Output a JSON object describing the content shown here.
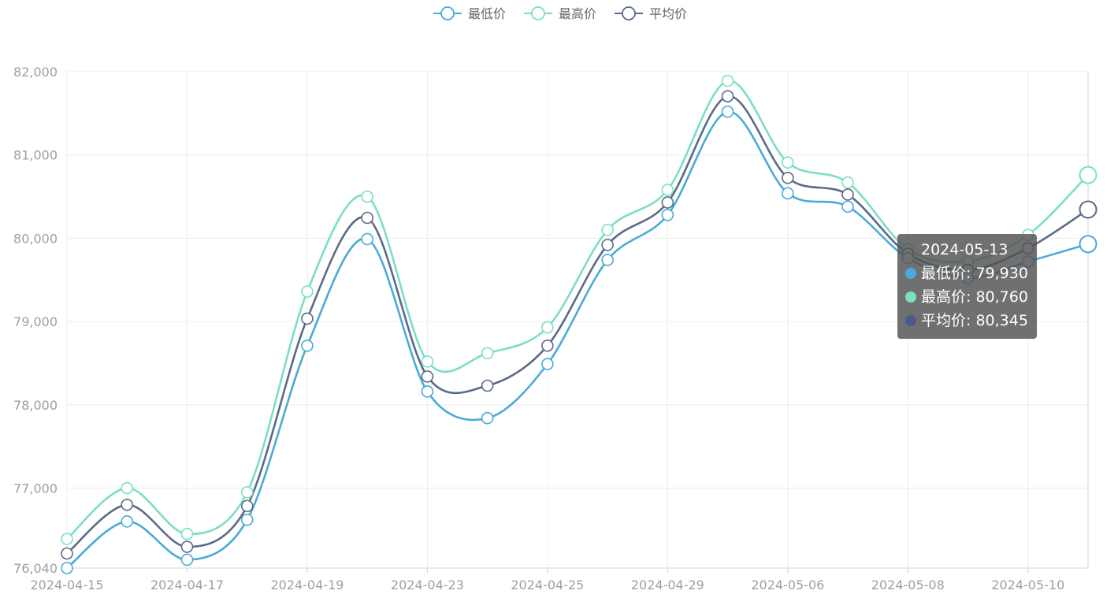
{
  "chart_data": {
    "type": "line",
    "smooth": true,
    "title": "",
    "xlabel": "",
    "ylabel": "",
    "ylim": [
      76040,
      82000
    ],
    "yticks": [
      76040,
      77000,
      78000,
      79000,
      80000,
      81000,
      82000
    ],
    "ytick_labels": [
      "76,040",
      "77,000",
      "78,000",
      "79,000",
      "80,000",
      "81,000",
      "82,000"
    ],
    "x": [
      "2024-04-15",
      "2024-04-16",
      "2024-04-17",
      "2024-04-18",
      "2024-04-19",
      "2024-04-22",
      "2024-04-23",
      "2024-04-24",
      "2024-04-25",
      "2024-04-26",
      "2024-04-29",
      "2024-04-30",
      "2024-05-06",
      "2024-05-07",
      "2024-05-08",
      "2024-05-09",
      "2024-05-10",
      "2024-05-13"
    ],
    "xtick_labels": [
      "2024-04-15",
      "2024-04-17",
      "2024-04-19",
      "2024-04-23",
      "2024-04-25",
      "2024-04-29",
      "2024-05-06",
      "2024-05-08",
      "2024-05-10"
    ],
    "xtick_every": 2,
    "legend_position": "top-center",
    "grid": true,
    "series": [
      {
        "name": "最低价",
        "color": "#4aabd6",
        "values": [
          76040,
          76600,
          76140,
          76620,
          78710,
          79990,
          78160,
          77840,
          78490,
          79740,
          80280,
          81520,
          80540,
          80380,
          79760,
          79520,
          79720,
          79930
        ]
      },
      {
        "name": "最高价",
        "color": "#7bdfc3",
        "values": [
          76390,
          77000,
          76450,
          76950,
          79360,
          80500,
          78520,
          78620,
          78930,
          80100,
          80580,
          81890,
          80910,
          80670,
          79870,
          79720,
          80040,
          80760
        ]
      },
      {
        "name": "平均价",
        "color": "#5c6a8a",
        "values": [
          76215,
          76800,
          76295,
          76785,
          79035,
          80245,
          78340,
          78230,
          78710,
          79920,
          80430,
          81705,
          80725,
          80525,
          79815,
          79620,
          79880,
          80345
        ]
      }
    ]
  },
  "tooltip": {
    "date": "2024-05-13",
    "rows": [
      {
        "label": "最低价: 79,930",
        "color": "#4aabd6"
      },
      {
        "label": "最高价: 80,760",
        "color": "#7bdfc3"
      },
      {
        "label": "平均价: 80,345",
        "color": "#4b5a8a"
      }
    ]
  }
}
